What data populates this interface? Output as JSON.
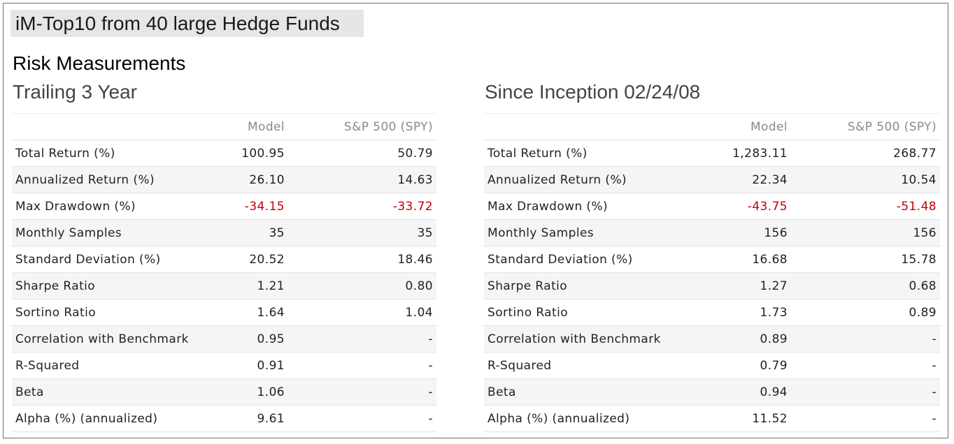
{
  "header": {
    "title": "iM-Top10 from 40 large Hedge Funds",
    "section": "Risk Measurements"
  },
  "colors": {
    "negative": "#c00000",
    "header_text": "#8a8a8a",
    "row_stripe": "#f5f5f5"
  },
  "panels": [
    {
      "title": "Trailing 3 Year",
      "columns": [
        "",
        "Model",
        "S&P 500 (SPY)"
      ],
      "rows": [
        {
          "label": "Total Return (%)",
          "model": "100.95",
          "spy": "50.79"
        },
        {
          "label": "Annualized Return (%)",
          "model": "26.10",
          "spy": "14.63"
        },
        {
          "label": "Max Drawdown (%)",
          "model": "-34.15",
          "spy": "-33.72"
        },
        {
          "label": "Monthly Samples",
          "model": "35",
          "spy": "35"
        },
        {
          "label": "Standard Deviation (%)",
          "model": "20.52",
          "spy": "18.46"
        },
        {
          "label": "Sharpe Ratio",
          "model": "1.21",
          "spy": "0.80"
        },
        {
          "label": "Sortino Ratio",
          "model": "1.64",
          "spy": "1.04"
        },
        {
          "label": "Correlation with Benchmark",
          "model": "0.95",
          "spy": "-"
        },
        {
          "label": "R-Squared",
          "model": "0.91",
          "spy": "-"
        },
        {
          "label": "Beta",
          "model": "1.06",
          "spy": "-"
        },
        {
          "label": "Alpha (%) (annualized)",
          "model": "9.61",
          "spy": "-"
        }
      ]
    },
    {
      "title": "Since Inception 02/24/08",
      "columns": [
        "",
        "Model",
        "S&P 500 (SPY)"
      ],
      "rows": [
        {
          "label": "Total Return (%)",
          "model": "1,283.11",
          "spy": "268.77"
        },
        {
          "label": "Annualized Return (%)",
          "model": "22.34",
          "spy": "10.54"
        },
        {
          "label": "Max Drawdown (%)",
          "model": "-43.75",
          "spy": "-51.48"
        },
        {
          "label": "Monthly Samples",
          "model": "156",
          "spy": "156"
        },
        {
          "label": "Standard Deviation (%)",
          "model": "16.68",
          "spy": "15.78"
        },
        {
          "label": "Sharpe Ratio",
          "model": "1.27",
          "spy": "0.68"
        },
        {
          "label": "Sortino Ratio",
          "model": "1.73",
          "spy": "0.89"
        },
        {
          "label": "Correlation with Benchmark",
          "model": "0.89",
          "spy": "-"
        },
        {
          "label": "R-Squared",
          "model": "0.79",
          "spy": "-"
        },
        {
          "label": "Beta",
          "model": "0.94",
          "spy": "-"
        },
        {
          "label": "Alpha (%) (annualized)",
          "model": "11.52",
          "spy": "-"
        }
      ]
    }
  ]
}
